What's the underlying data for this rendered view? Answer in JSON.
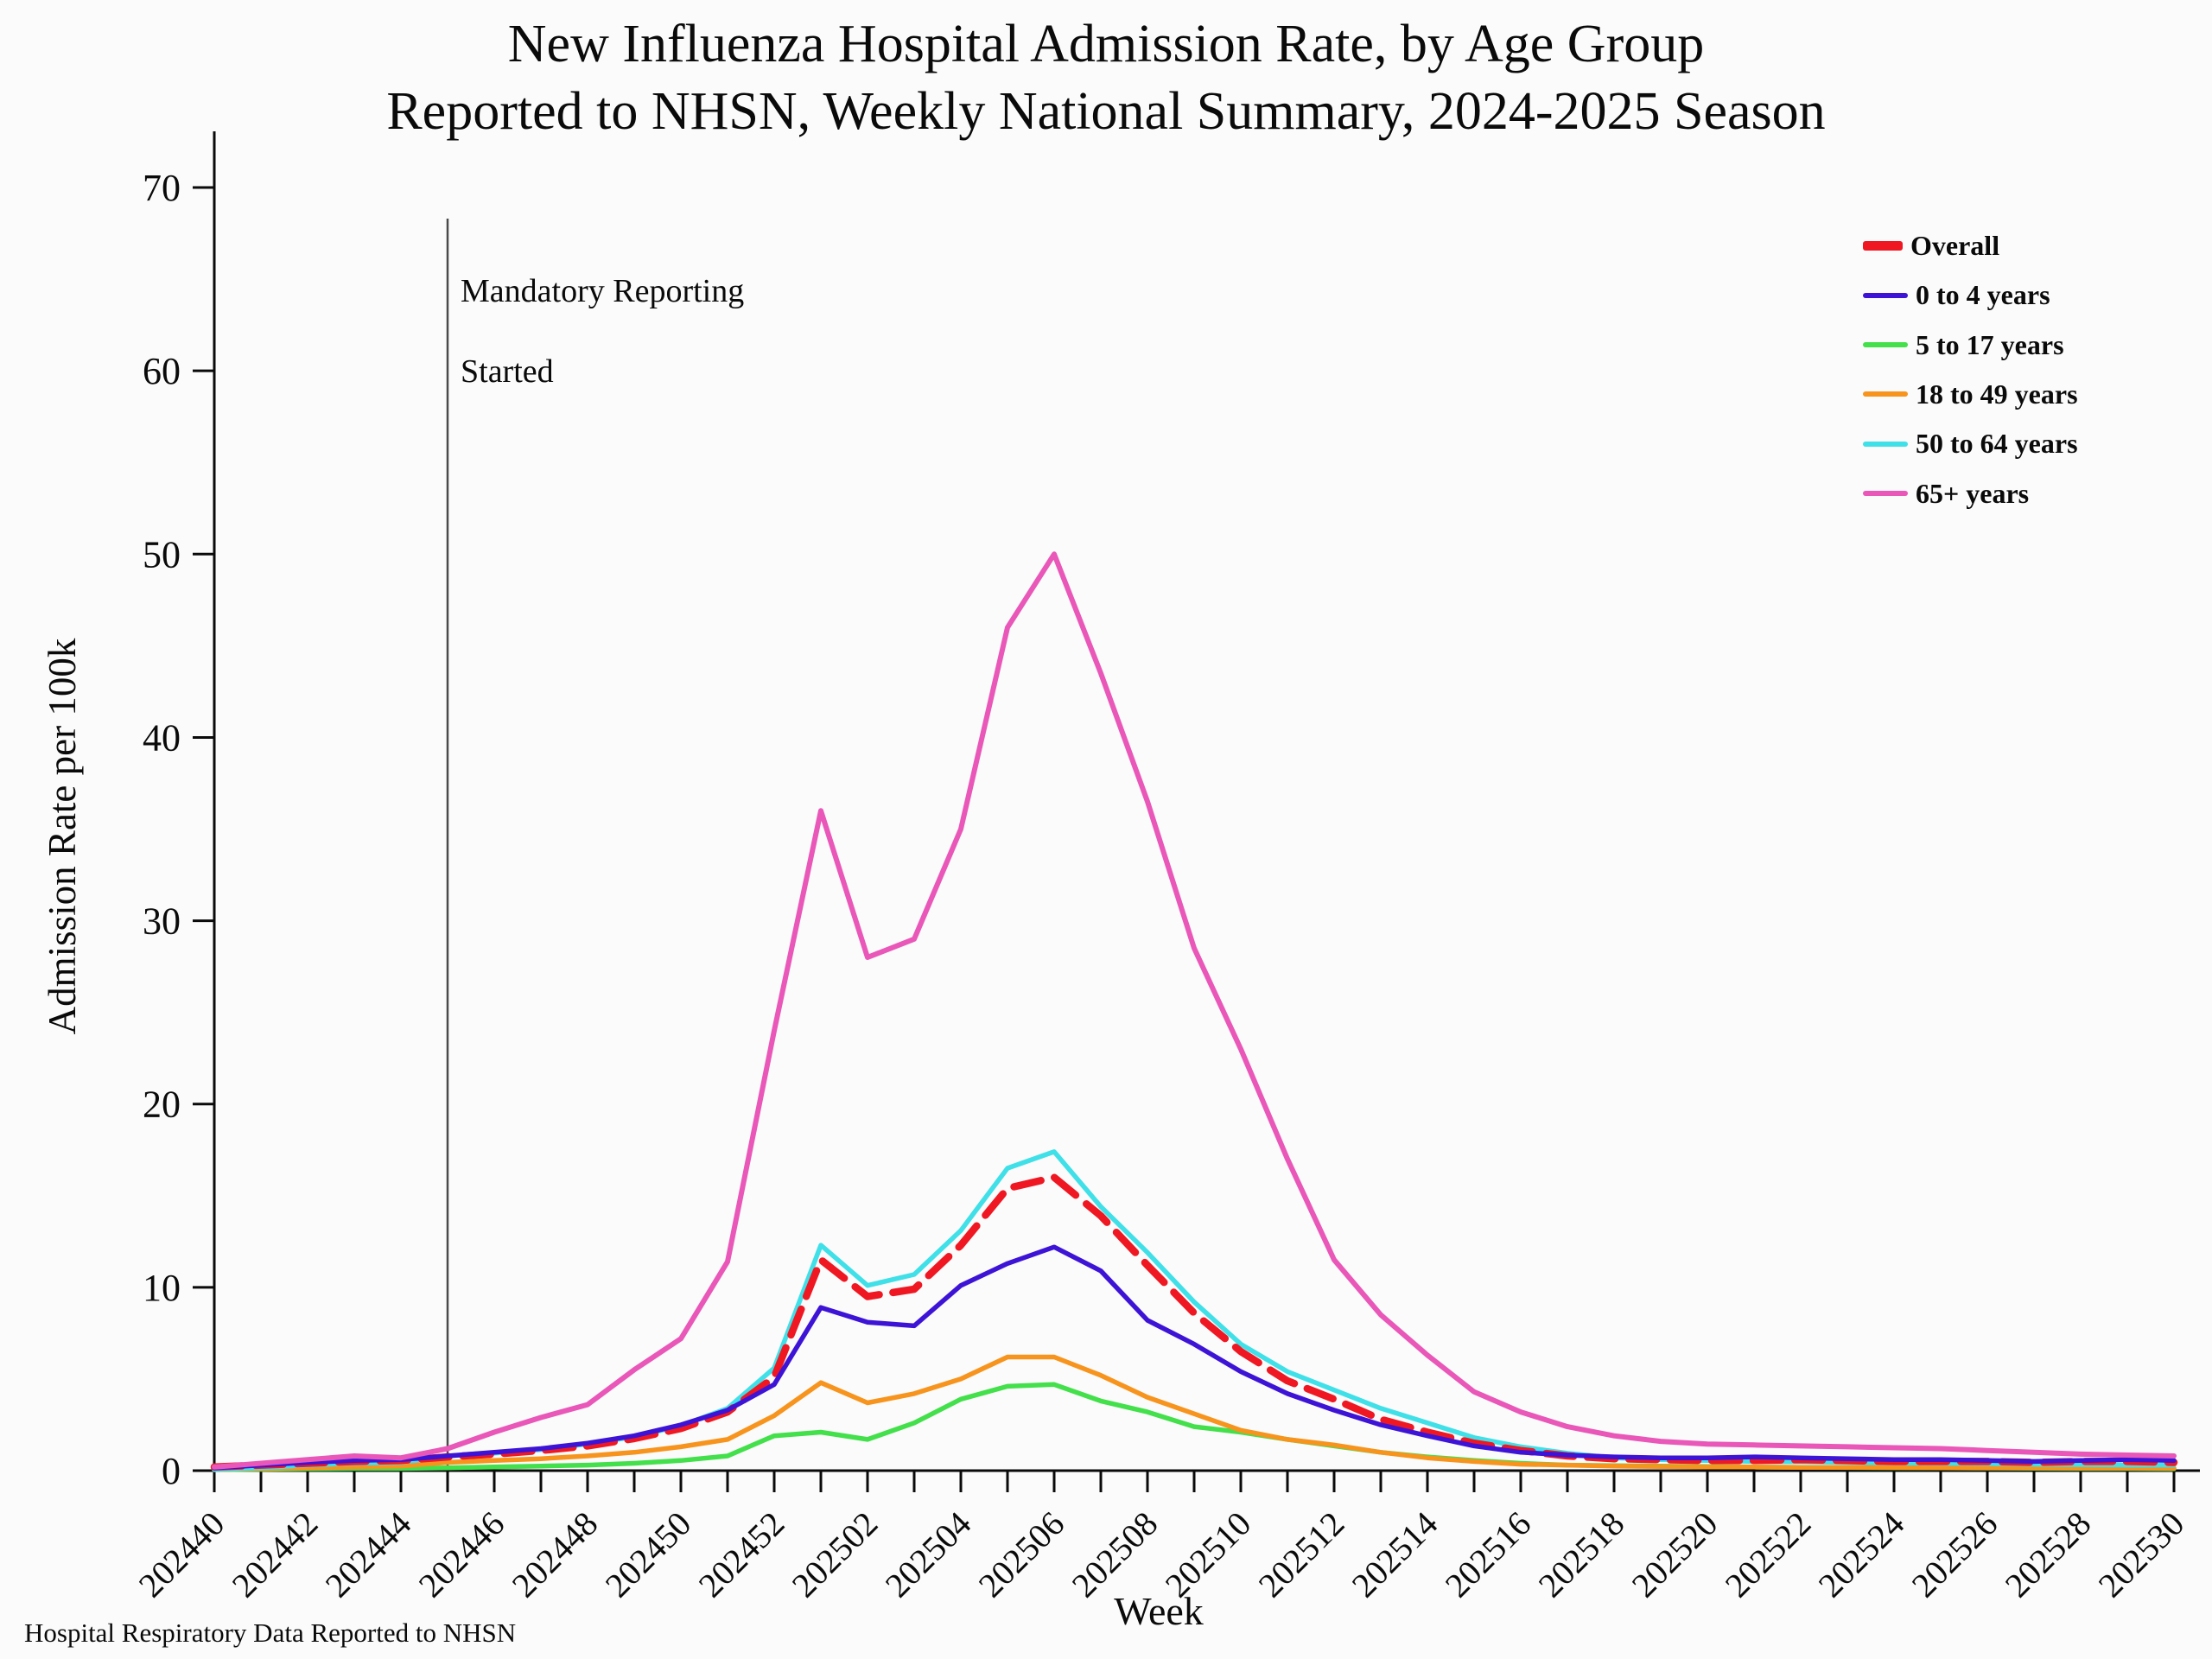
{
  "page": {
    "background": "#fbfbfb"
  },
  "title": {
    "line1": "New Influenza Hospital Admission Rate, by Age Group",
    "line2": "Reported to NHSN, Weekly National Summary, 2024-2025 Season"
  },
  "annotation": {
    "line1": "Mandatory Reporting",
    "line2": "Started",
    "at_week": "202445"
  },
  "axes": {
    "x_label": "Week",
    "y_label": "Admission Rate per 100k"
  },
  "footer": {
    "text": "Hospital Respiratory Data Reported to NHSN"
  },
  "colors": {
    "axis": "#0a0a0a",
    "annotation_line": "#4a4a4a",
    "overall": "#ef1822",
    "age_0_4": "#3d14d6",
    "age_5_17": "#43e04b",
    "age_18_49": "#f7941d",
    "age_50_64": "#40e0e8",
    "age_65_plus": "#e957b8"
  },
  "chart_data": {
    "type": "line",
    "title": "New Influenza Hospital Admission Rate, by Age Group — Reported to NHSN, Weekly National Summary, 2024-2025 Season",
    "xlabel": "Week",
    "ylabel": "Admission Rate per 100k",
    "ylim": [
      0,
      70
    ],
    "yticks": [
      0,
      10,
      20,
      30,
      40,
      50,
      60,
      70
    ],
    "grid": false,
    "legend_position": "top-right",
    "x_tick_label_every": 2,
    "annotation_vline_week": "202445",
    "categories": [
      "202440",
      "202441",
      "202442",
      "202443",
      "202444",
      "202445",
      "202446",
      "202447",
      "202448",
      "202449",
      "202450",
      "202451",
      "202452",
      "202501",
      "202502",
      "202503",
      "202504",
      "202505",
      "202506",
      "202507",
      "202508",
      "202509",
      "202510",
      "202511",
      "202512",
      "202513",
      "202514",
      "202515",
      "202516",
      "202517",
      "202518",
      "202519",
      "202520",
      "202521",
      "202522",
      "202523",
      "202524",
      "202525",
      "202526",
      "202527",
      "202528",
      "202529",
      "202530"
    ],
    "series": [
      {
        "name": "Overall",
        "color": "#ef1822",
        "dashed": true,
        "width": 8.5,
        "values": [
          0.2,
          0.3,
          0.4,
          0.5,
          0.55,
          0.75,
          0.9,
          1.1,
          1.35,
          1.75,
          2.3,
          3.2,
          5.1,
          11.5,
          9.5,
          9.9,
          12.3,
          15.4,
          16.0,
          13.9,
          11.2,
          8.6,
          6.5,
          4.9,
          3.9,
          2.8,
          2.1,
          1.5,
          1.1,
          0.8,
          0.65,
          0.6,
          0.55,
          0.55,
          0.6,
          0.55,
          0.5,
          0.5,
          0.5,
          0.45,
          0.5,
          0.5,
          0.45
        ]
      },
      {
        "name": "0 to 4 years",
        "color": "#3d14d6",
        "dashed": false,
        "width": 5.5,
        "values": [
          0.15,
          0.3,
          0.45,
          0.55,
          0.6,
          0.8,
          1.0,
          1.2,
          1.5,
          1.9,
          2.5,
          3.3,
          4.7,
          8.9,
          8.1,
          7.9,
          10.1,
          11.3,
          12.2,
          10.9,
          8.2,
          6.9,
          5.4,
          4.2,
          3.3,
          2.5,
          1.9,
          1.35,
          1.0,
          0.85,
          0.75,
          0.7,
          0.7,
          0.75,
          0.7,
          0.65,
          0.6,
          0.6,
          0.55,
          0.5,
          0.55,
          0.6,
          0.55
        ]
      },
      {
        "name": "5 to 17 years",
        "color": "#43e04b",
        "dashed": false,
        "width": 5.5,
        "values": [
          0.05,
          0.07,
          0.1,
          0.12,
          0.12,
          0.15,
          0.2,
          0.25,
          0.3,
          0.4,
          0.55,
          0.8,
          1.9,
          2.1,
          1.7,
          2.6,
          3.9,
          4.6,
          4.7,
          3.8,
          3.2,
          2.4,
          2.1,
          1.7,
          1.35,
          1.0,
          0.75,
          0.55,
          0.4,
          0.3,
          0.27,
          0.25,
          0.22,
          0.2,
          0.18,
          0.17,
          0.16,
          0.15,
          0.14,
          0.13,
          0.12,
          0.12,
          0.1
        ]
      },
      {
        "name": "18 to 49 years",
        "color": "#f7941d",
        "dashed": false,
        "width": 5.5,
        "values": [
          0.05,
          0.1,
          0.15,
          0.2,
          0.25,
          0.45,
          0.55,
          0.65,
          0.8,
          1.0,
          1.3,
          1.7,
          3.0,
          4.8,
          3.7,
          4.2,
          5.0,
          6.2,
          6.2,
          5.2,
          4.0,
          3.1,
          2.2,
          1.7,
          1.4,
          1.0,
          0.7,
          0.5,
          0.35,
          0.3,
          0.25,
          0.22,
          0.2,
          0.2,
          0.18,
          0.18,
          0.17,
          0.16,
          0.15,
          0.15,
          0.14,
          0.14,
          0.13
        ]
      },
      {
        "name": "50 to 64 years",
        "color": "#40e0e8",
        "dashed": false,
        "width": 5.5,
        "values": [
          0.05,
          0.15,
          0.3,
          0.4,
          0.45,
          0.8,
          0.95,
          1.15,
          1.45,
          1.85,
          2.45,
          3.4,
          5.6,
          12.3,
          10.1,
          10.7,
          13.1,
          16.5,
          17.4,
          14.4,
          11.9,
          9.2,
          6.9,
          5.4,
          4.4,
          3.4,
          2.6,
          1.8,
          1.3,
          0.95,
          0.7,
          0.6,
          0.55,
          0.5,
          0.48,
          0.45,
          0.42,
          0.4,
          0.38,
          0.35,
          0.33,
          0.3,
          0.3
        ]
      },
      {
        "name": "65+ years",
        "color": "#e957b8",
        "dashed": false,
        "width": 6,
        "values": [
          0.2,
          0.4,
          0.6,
          0.8,
          0.7,
          1.2,
          2.1,
          2.9,
          3.6,
          5.5,
          7.2,
          11.4,
          24,
          36,
          28,
          29,
          35,
          46,
          50,
          43.5,
          36.5,
          28.5,
          23,
          17,
          11.5,
          8.5,
          6.3,
          4.3,
          3.2,
          2.4,
          1.9,
          1.6,
          1.45,
          1.4,
          1.35,
          1.3,
          1.25,
          1.2,
          1.1,
          1.0,
          0.9,
          0.85,
          0.8
        ]
      }
    ]
  }
}
